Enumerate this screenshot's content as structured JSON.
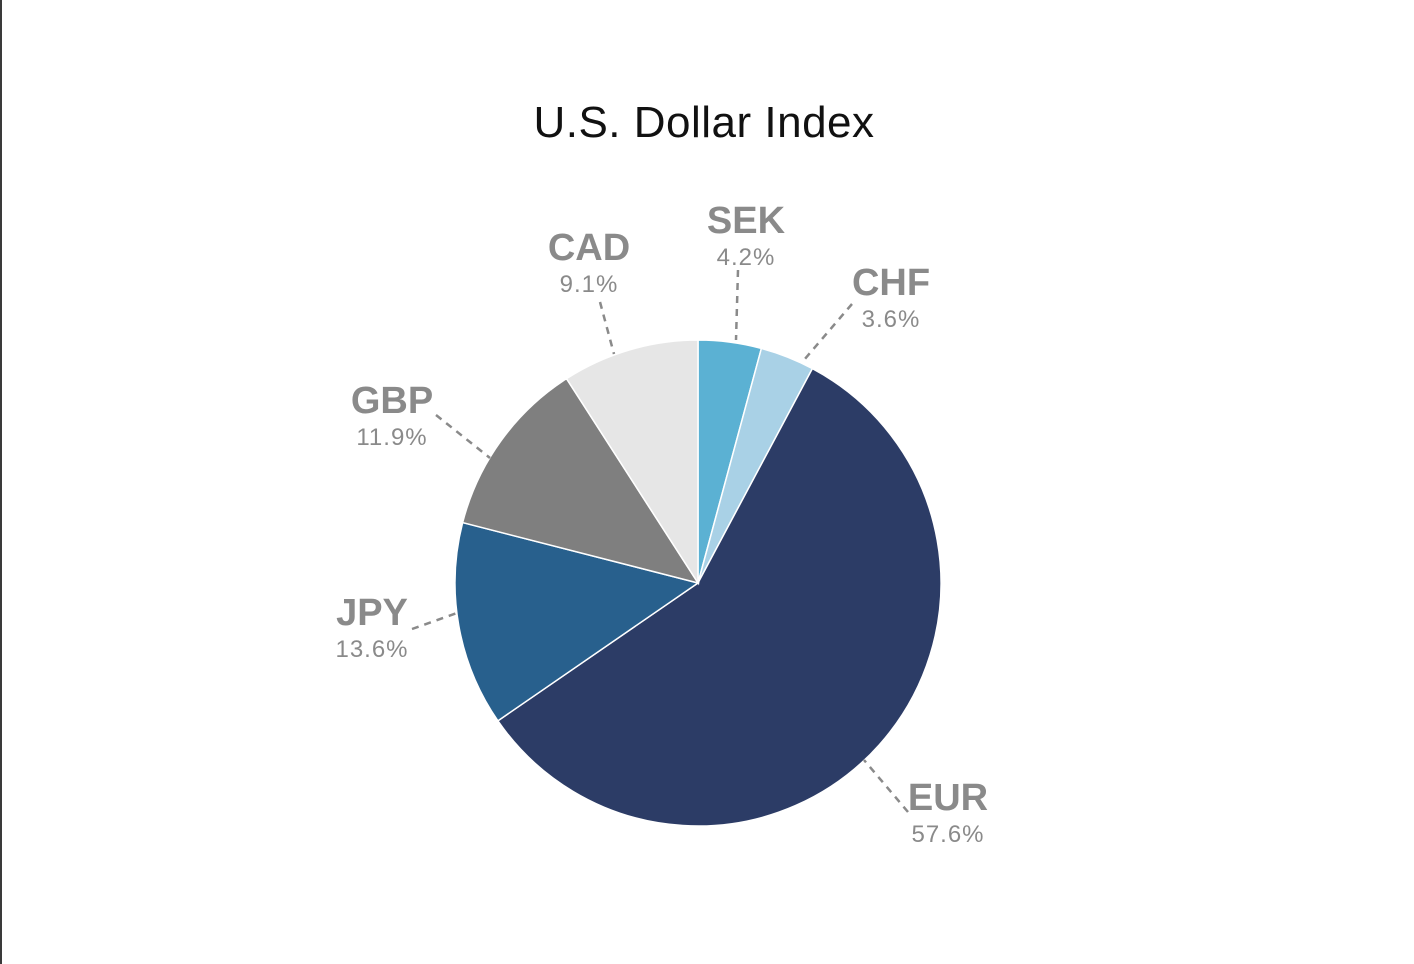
{
  "chart_data": {
    "type": "pie",
    "title": "U.S. Dollar Index",
    "slices": [
      {
        "label": "SEK",
        "value": 4.2,
        "display": "4.2%",
        "color": "#5bb1d3"
      },
      {
        "label": "CHF",
        "value": 3.6,
        "display": "3.6%",
        "color": "#a9d1e6"
      },
      {
        "label": "EUR",
        "value": 57.6,
        "display": "57.6%",
        "color": "#2c3c66"
      },
      {
        "label": "JPY",
        "value": 13.6,
        "display": "13.6%",
        "color": "#28608d"
      },
      {
        "label": "GBP",
        "value": 11.9,
        "display": "11.9%",
        "color": "#7f7f7f"
      },
      {
        "label": "CAD",
        "value": 9.1,
        "display": "9.1%",
        "color": "#e6e6e6"
      }
    ]
  }
}
